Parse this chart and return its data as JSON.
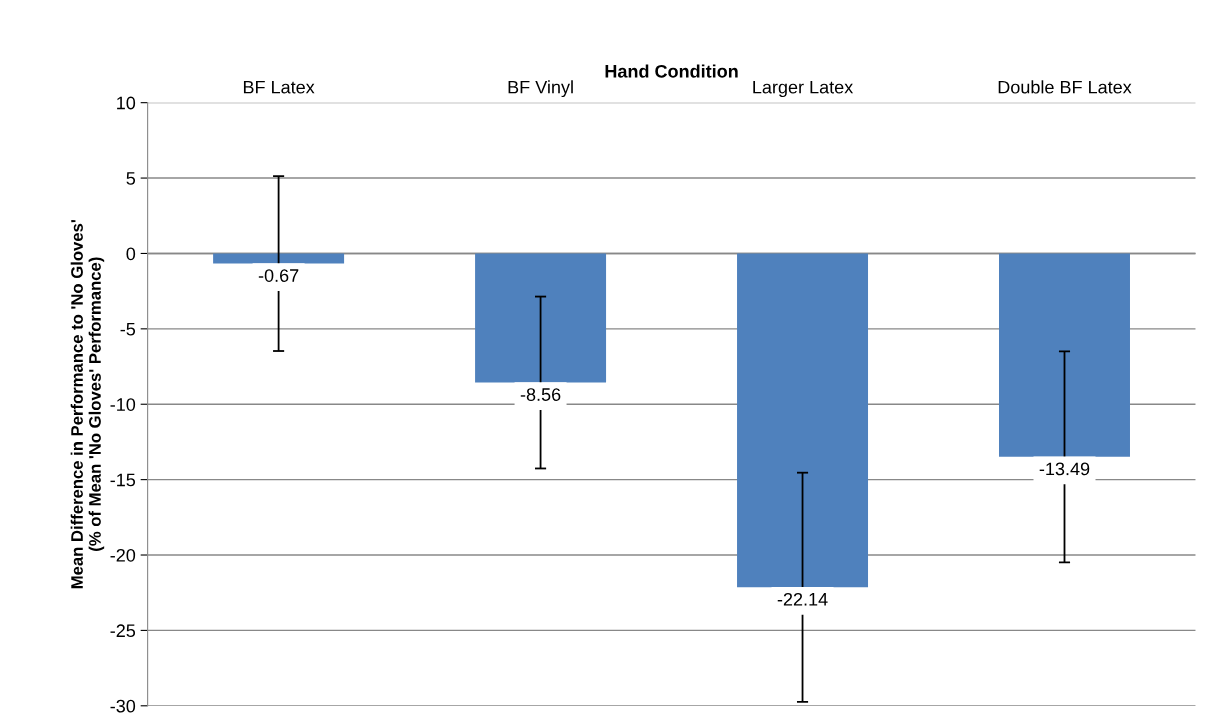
{
  "chart_data": {
    "type": "bar",
    "xlabel": "Hand Condition",
    "ylabel": "Mean Difference in Performance to 'No Gloves'\n(% of Mean 'No Gloves' Performance)",
    "categories": [
      "BF Latex",
      "BF Vinyl",
      "Larger Latex",
      "Double BF Latex"
    ],
    "values": [
      -0.67,
      -8.56,
      -22.14,
      -13.49
    ],
    "errors": [
      5.8,
      5.7,
      7.6,
      7.0
    ],
    "color": "#4f81bd",
    "data_labels": true,
    "ylim": [
      -30,
      10
    ],
    "yticks": [
      -30,
      -25,
      -20,
      -15,
      -10,
      -5,
      0,
      5,
      10
    ],
    "grid": "y"
  }
}
